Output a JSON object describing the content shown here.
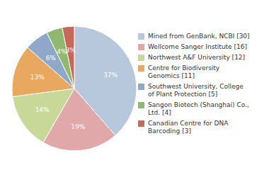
{
  "chart_data": {
    "type": "pie",
    "categories": [
      "Mined from GenBank, NCBI [30]",
      "Wellcome Sanger Institute [16]",
      "Northwest A&F University [12]",
      "Centre for Biodiversity\nGenomics [11]",
      "Southwest University, College\nof Plant Protection [5]",
      "Sangon Biotech (Shanghai) Co.,\nLtd. [4]",
      "Canadian Centre for DNA\nBarcoding [3]"
    ],
    "values": [
      37,
      19,
      14,
      13,
      6,
      4,
      3
    ],
    "value_labels": [
      "37%",
      "19%",
      "14%",
      "13%",
      "6%",
      "4%",
      "3%"
    ],
    "data_labels": true,
    "colors": [
      "#b8c8dc",
      "#e0a8a8",
      "#c8d898",
      "#e8a860",
      "#90a8c8",
      "#90b870",
      "#c86858"
    ],
    "legend": "right"
  }
}
